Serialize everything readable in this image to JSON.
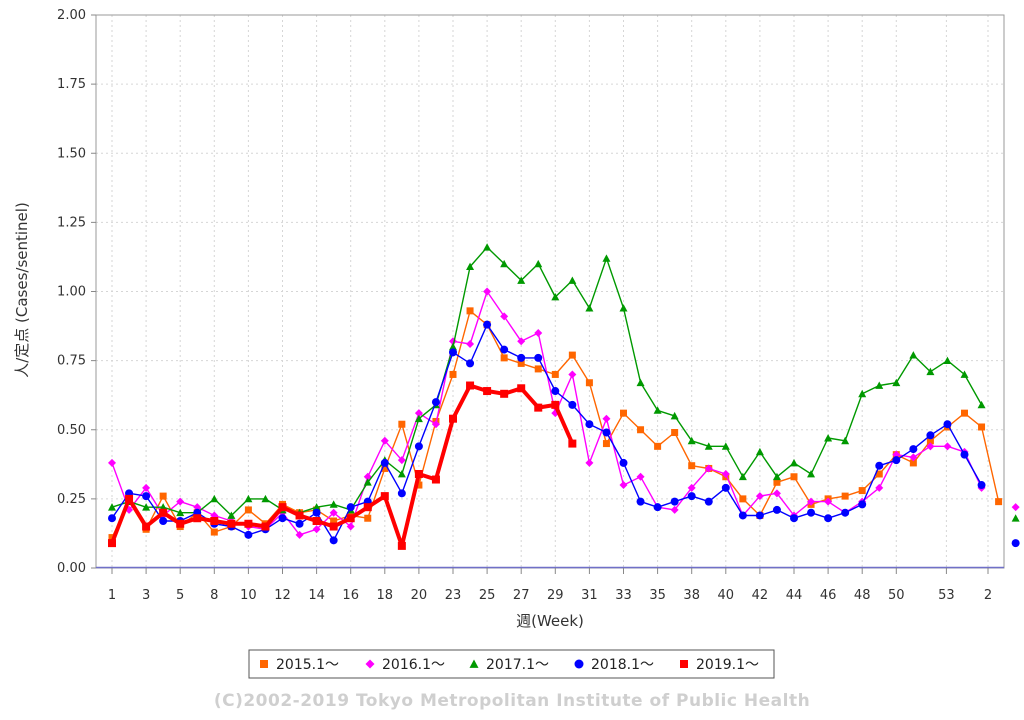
{
  "chart_data": {
    "type": "line",
    "title": "",
    "xlabel": "週(Week)",
    "ylabel": "人/定点 (Cases/sentinel)",
    "ylim": [
      0,
      2
    ],
    "yticks": [
      "0.00",
      "0.25",
      "0.50",
      "0.75",
      "1.00",
      "1.25",
      "1.50",
      "1.75",
      "2.00"
    ],
    "xticks": [
      "1",
      "3",
      "5",
      "8",
      "10",
      "12",
      "14",
      "16",
      "18",
      "20",
      "23",
      "25",
      "27",
      "29",
      "31",
      "33",
      "35",
      "38",
      "40",
      "42",
      "44",
      "46",
      "48",
      "50",
      "53",
      "2"
    ],
    "grid": true,
    "legend_position": "bottom",
    "footer": "(C)2002-2019 Tokyo Metropolitan Institute of Public Health",
    "series": [
      {
        "name": "2015.1～",
        "color": "#ff6600",
        "marker": "square",
        "values": [
          0.11,
          0.24,
          0.14,
          0.26,
          0.15,
          0.2,
          0.13,
          0.15,
          0.21,
          0.16,
          0.23,
          0.2,
          0.21,
          0.17,
          0.19,
          0.18,
          0.36,
          0.52,
          0.3,
          0.53,
          0.7,
          0.93,
          0.88,
          0.76,
          0.74,
          0.72,
          0.7,
          0.77,
          0.67,
          0.45,
          0.56,
          0.5,
          0.44,
          0.49,
          0.37,
          0.36,
          0.33,
          0.25,
          0.19,
          0.31,
          0.33,
          0.23,
          0.25,
          0.26,
          0.28,
          0.34,
          0.41,
          0.38,
          0.46,
          0.51,
          0.56,
          0.51,
          0.24,
          null
        ]
      },
      {
        "name": "2016.1～",
        "color": "#ff00ff",
        "marker": "diamond",
        "values": [
          0.38,
          0.21,
          0.29,
          0.19,
          0.24,
          0.22,
          0.19,
          0.17,
          0.15,
          0.14,
          0.2,
          0.12,
          0.14,
          0.2,
          0.15,
          0.33,
          0.46,
          0.39,
          0.56,
          0.52,
          0.82,
          0.81,
          1.0,
          0.91,
          0.82,
          0.85,
          0.56,
          0.7,
          0.38,
          0.54,
          0.3,
          0.33,
          0.22,
          0.21,
          0.29,
          0.36,
          0.34,
          0.19,
          0.26,
          0.27,
          0.19,
          0.24,
          0.24,
          0.2,
          0.24,
          0.29,
          0.41,
          0.4,
          0.44,
          0.44,
          0.42,
          0.29,
          null,
          0.22
        ]
      },
      {
        "name": "2017.1～",
        "color": "#009900",
        "marker": "triangle",
        "values": [
          0.22,
          0.24,
          0.22,
          0.22,
          0.2,
          0.2,
          0.25,
          0.19,
          0.25,
          0.25,
          0.21,
          0.2,
          0.22,
          0.23,
          0.21,
          0.31,
          0.39,
          0.34,
          0.54,
          0.59,
          0.8,
          1.09,
          1.16,
          1.1,
          1.04,
          1.1,
          0.98,
          1.04,
          0.94,
          1.12,
          0.94,
          0.67,
          0.57,
          0.55,
          0.46,
          0.44,
          0.44,
          0.33,
          0.42,
          0.33,
          0.38,
          0.34,
          0.47,
          0.46,
          0.63,
          0.66,
          0.67,
          0.77,
          0.71,
          0.75,
          0.7,
          0.59,
          null,
          0.18
        ]
      },
      {
        "name": "2018.1～",
        "color": "#0000ff",
        "marker": "circle",
        "values": [
          0.18,
          0.27,
          0.26,
          0.17,
          0.17,
          0.2,
          0.16,
          0.15,
          0.12,
          0.14,
          0.18,
          0.16,
          0.2,
          0.1,
          0.22,
          0.24,
          0.38,
          0.27,
          0.44,
          0.6,
          0.78,
          0.74,
          0.88,
          0.79,
          0.76,
          0.76,
          0.64,
          0.59,
          0.52,
          0.49,
          0.38,
          0.24,
          0.22,
          0.24,
          0.26,
          0.24,
          0.29,
          0.19,
          0.19,
          0.21,
          0.18,
          0.2,
          0.18,
          0.2,
          0.23,
          0.37,
          0.39,
          0.43,
          0.48,
          0.52,
          0.41,
          0.3,
          null,
          0.09
        ]
      },
      {
        "name": "2019.1～",
        "color": "#ff0000",
        "marker": "square",
        "line_width": 4,
        "values": [
          0.09,
          0.25,
          0.15,
          0.2,
          0.16,
          0.18,
          0.17,
          0.16,
          0.16,
          0.15,
          0.22,
          0.19,
          0.17,
          0.15,
          0.18,
          0.22,
          0.26,
          0.08,
          0.34,
          0.32,
          0.54,
          0.66,
          0.64,
          0.63,
          0.65,
          0.58,
          0.59,
          0.45
        ]
      }
    ]
  }
}
